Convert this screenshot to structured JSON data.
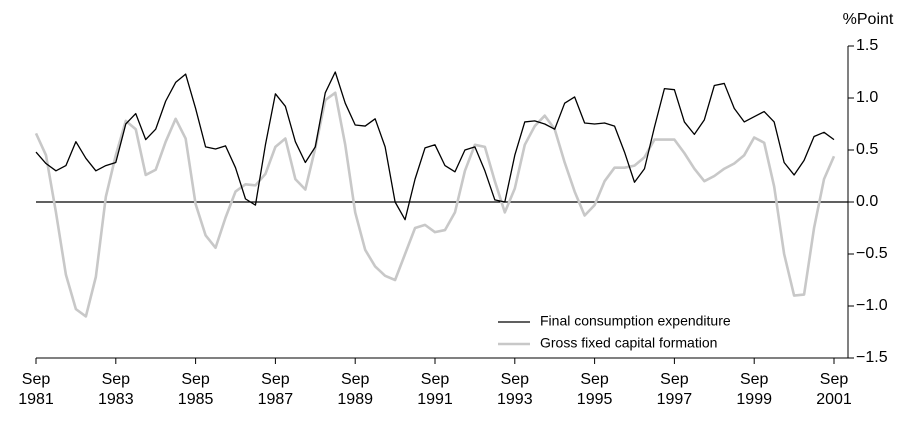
{
  "chart_data": {
    "type": "line",
    "y_axis_label": "%Point",
    "categories": [
      "Sep 1981",
      null,
      null,
      null,
      null,
      null,
      null,
      null,
      "Sep 1983",
      null,
      null,
      null,
      null,
      null,
      null,
      null,
      "Sep 1985",
      null,
      null,
      null,
      null,
      null,
      null,
      null,
      "Sep 1987",
      null,
      null,
      null,
      null,
      null,
      null,
      null,
      "Sep 1989",
      null,
      null,
      null,
      null,
      null,
      null,
      null,
      "Sep 1991",
      null,
      null,
      null,
      null,
      null,
      null,
      null,
      "Sep 1993",
      null,
      null,
      null,
      null,
      null,
      null,
      null,
      "Sep 1995",
      null,
      null,
      null,
      null,
      null,
      null,
      null,
      "Sep 1997",
      null,
      null,
      null,
      null,
      null,
      null,
      null,
      "Sep 1999",
      null,
      null,
      null,
      null,
      null,
      null,
      null,
      "Sep 2001"
    ],
    "series": [
      {
        "name": "Final consumption expenditure",
        "color": "#000000",
        "width": 1.3,
        "values": [
          0.48,
          0.37,
          0.3,
          0.35,
          0.58,
          0.42,
          0.3,
          0.35,
          0.38,
          0.75,
          0.85,
          0.6,
          0.7,
          0.97,
          1.15,
          1.23,
          0.9,
          0.53,
          0.51,
          0.54,
          0.33,
          0.03,
          -0.03,
          0.55,
          1.04,
          0.92,
          0.58,
          0.38,
          0.53,
          1.05,
          1.25,
          0.95,
          0.74,
          0.73,
          0.8,
          0.53,
          0.0,
          -0.17,
          0.22,
          0.52,
          0.55,
          0.35,
          0.29,
          0.5,
          0.53,
          0.3,
          0.02,
          0.0,
          0.45,
          0.77,
          0.78,
          0.75,
          0.7,
          0.95,
          1.01,
          0.76,
          0.75,
          0.76,
          0.73,
          0.48,
          0.19,
          0.32,
          0.72,
          1.09,
          1.08,
          0.77,
          0.65,
          0.79,
          1.12,
          1.14,
          0.9,
          0.77,
          0.82,
          0.87,
          0.77,
          0.38,
          0.26,
          0.4,
          0.63,
          0.67,
          0.6
        ]
      },
      {
        "name": "Gross fixed capital formation",
        "color": "#c8c8c8",
        "width": 2.6,
        "values": [
          0.66,
          0.45,
          -0.1,
          -0.7,
          -1.03,
          -1.1,
          -0.72,
          0.05,
          0.45,
          0.78,
          0.7,
          0.26,
          0.31,
          0.58,
          0.8,
          0.61,
          -0.02,
          -0.32,
          -0.44,
          -0.15,
          0.1,
          0.17,
          0.16,
          0.27,
          0.53,
          0.61,
          0.22,
          0.12,
          0.52,
          0.98,
          1.05,
          0.55,
          -0.1,
          -0.46,
          -0.62,
          -0.71,
          -0.75,
          -0.5,
          -0.25,
          -0.22,
          -0.29,
          -0.27,
          -0.1,
          0.3,
          0.55,
          0.53,
          0.2,
          -0.1,
          0.13,
          0.55,
          0.73,
          0.83,
          0.7,
          0.38,
          0.1,
          -0.13,
          -0.03,
          0.2,
          0.33,
          0.33,
          0.35,
          0.43,
          0.6,
          0.6,
          0.6,
          0.47,
          0.32,
          0.2,
          0.25,
          0.32,
          0.37,
          0.45,
          0.62,
          0.57,
          0.15,
          -0.5,
          -0.9,
          -0.89,
          -0.25,
          0.22,
          0.44
        ]
      }
    ],
    "ylim": [
      -1.5,
      1.5
    ],
    "yticks": [
      1.5,
      {
        "value": 1.0,
        "label": "1.0"
      },
      0.5,
      {
        "value": 0.0,
        "label": "0.0"
      },
      {
        "value": -0.5,
        "label": "−0.5"
      },
      {
        "value": -1.0,
        "label": "−1.0"
      },
      {
        "value": -1.5,
        "label": "−1.5"
      }
    ],
    "y_axis_side": "right",
    "zero_line": true,
    "grid": false,
    "legend": "lower-right"
  }
}
